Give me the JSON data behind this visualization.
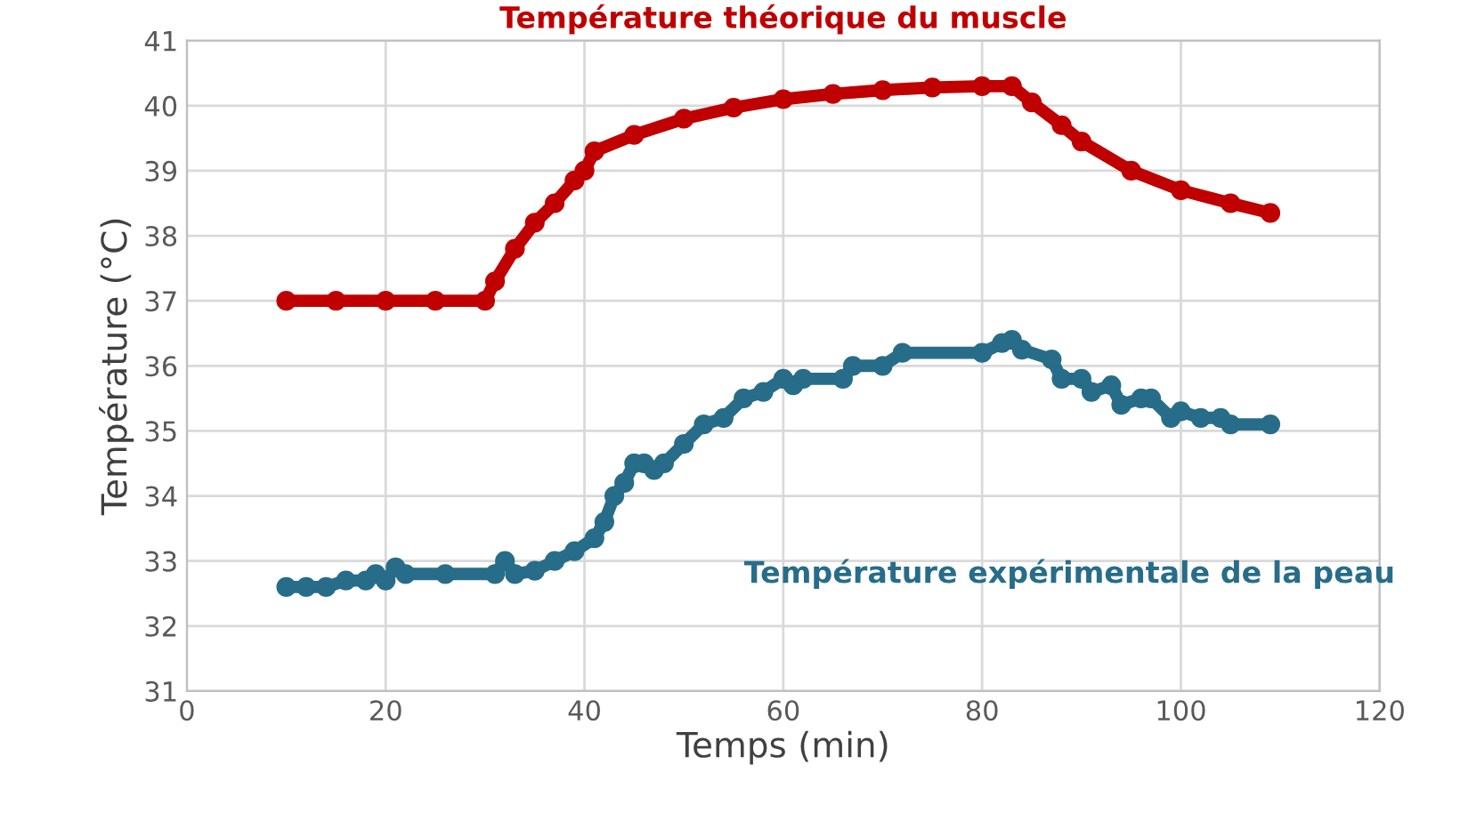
{
  "chart_data": {
    "type": "line",
    "xlabel": "Temps (min)",
    "ylabel": "Température (°C)",
    "xlim": [
      0,
      120
    ],
    "xticks": [
      0,
      20,
      40,
      60,
      80,
      100,
      120
    ],
    "ylim": [
      31,
      41
    ],
    "yticks": [
      31,
      32,
      33,
      34,
      35,
      36,
      37,
      38,
      39,
      40,
      41
    ],
    "grid": true,
    "legend": false,
    "marker": "circle",
    "line_style": "solid",
    "series": [
      {
        "name": "Température théorique du muscle",
        "color": "#c00000",
        "x": [
          10,
          15,
          20,
          25,
          30,
          31,
          33,
          35,
          37,
          39,
          40,
          41,
          45,
          50,
          55,
          60,
          65,
          70,
          75,
          80,
          83,
          85,
          88,
          90,
          95,
          100,
          105,
          109
        ],
        "values": [
          37,
          37,
          37,
          37,
          37,
          37.3,
          37.8,
          38.2,
          38.5,
          38.85,
          39.0,
          39.3,
          39.55,
          39.8,
          39.97,
          40.1,
          40.18,
          40.24,
          40.28,
          40.3,
          40.3,
          40.05,
          39.7,
          39.45,
          39.0,
          38.7,
          38.5,
          38.35
        ]
      },
      {
        "name": "Température expérimentale de la peau",
        "color": "#276d89",
        "x": [
          10,
          12,
          14,
          16,
          18,
          19,
          20,
          21,
          22,
          26,
          31,
          32,
          33,
          35,
          37,
          39,
          41,
          42,
          43,
          44,
          45,
          46,
          47,
          48,
          50,
          52,
          54,
          56,
          58,
          60,
          61,
          62,
          66,
          67,
          70,
          72,
          80,
          82,
          83,
          84,
          87,
          88,
          90,
          91,
          93,
          94,
          96,
          97,
          99,
          100,
          102,
          104,
          105,
          109
        ],
        "values": [
          32.6,
          32.6,
          32.6,
          32.7,
          32.7,
          32.8,
          32.7,
          32.9,
          32.8,
          32.8,
          32.8,
          33.0,
          32.8,
          32.85,
          33.0,
          33.15,
          33.35,
          33.6,
          34.0,
          34.2,
          34.5,
          34.5,
          34.4,
          34.5,
          34.8,
          35.1,
          35.2,
          35.5,
          35.6,
          35.8,
          35.7,
          35.8,
          35.8,
          36.0,
          36.0,
          36.2,
          36.2,
          36.35,
          36.4,
          36.25,
          36.1,
          35.8,
          35.8,
          35.6,
          35.7,
          35.4,
          35.5,
          35.5,
          35.2,
          35.3,
          35.2,
          35.2,
          35.1,
          35.1
        ]
      }
    ]
  }
}
